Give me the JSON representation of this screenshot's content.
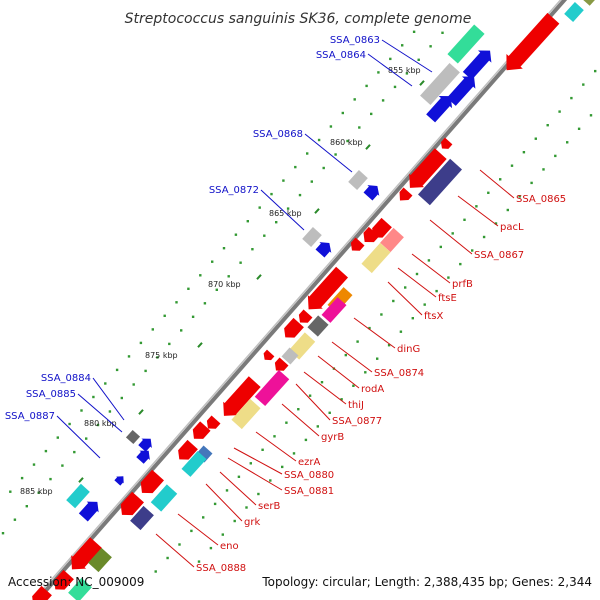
{
  "title": "Streptococcus sanguinis SK36, complete genome",
  "footer": {
    "accession": "Accession: NC_009009",
    "topology": "Topology: circular; Length: 2,388,435 bp; Genes: 2,344"
  },
  "colors": {
    "background": "#ffffff",
    "backbone": "#888888",
    "forward_label": "#1010c8",
    "reverse_label": "#d01010",
    "gc_skew_dots": "#339933"
  },
  "kbp_ticks": [
    {
      "label": "855 kbp"
    },
    {
      "label": "860 kbp"
    },
    {
      "label": "865 kbp"
    },
    {
      "label": "870 kbp"
    },
    {
      "label": "875 kbp"
    },
    {
      "label": "880 kbp"
    },
    {
      "label": "885 kbp"
    }
  ],
  "forward_labels": [
    "SSA_0863",
    "SSA_0864",
    "SSA_0868",
    "SSA_0872",
    "SSA_0884",
    "SSA_0885",
    "SSA_0887"
  ],
  "reverse_labels": [
    "SSA_0865",
    "pacL",
    "SSA_0867",
    "prfB",
    "ftsE",
    "ftsX",
    "dinG",
    "SSA_0874",
    "rodA",
    "thiJ",
    "SSA_0877",
    "gyrB",
    "ezrA",
    "SSA_0880",
    "SSA_0881",
    "serB",
    "grk",
    "eno",
    "SSA_0888"
  ]
}
